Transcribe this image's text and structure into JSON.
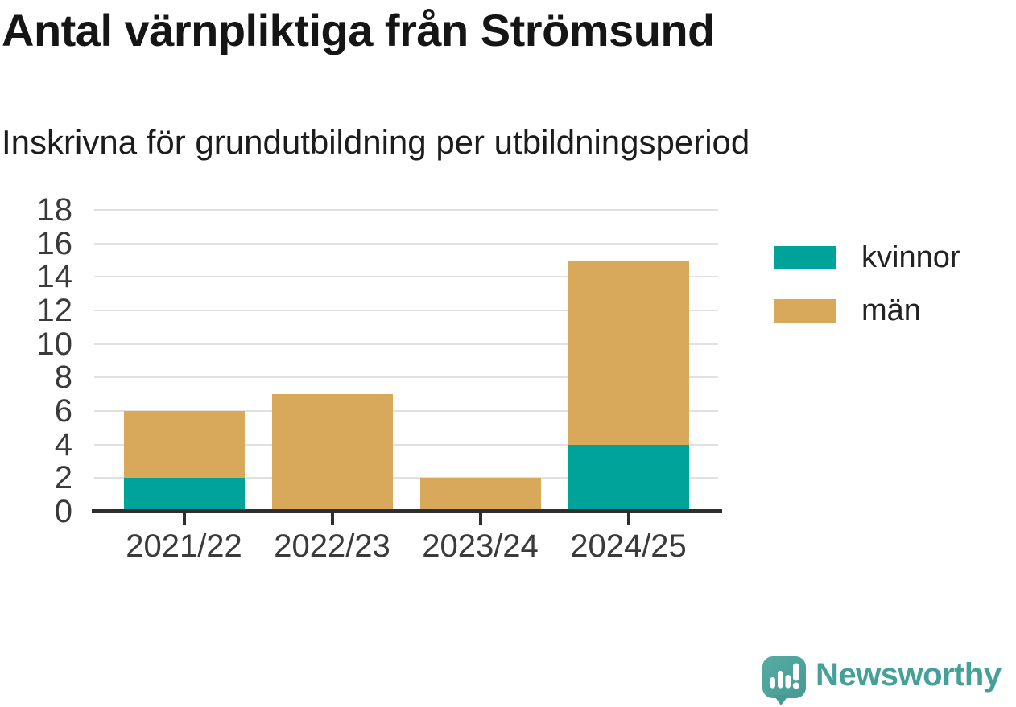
{
  "chart_data": {
    "type": "bar",
    "stacked": true,
    "title": "Antal värnpliktiga från Strömsund",
    "subtitle": "Inskrivna för grundutbildning per utbildningsperiod",
    "categories": [
      "2021/22",
      "2022/23",
      "2023/24",
      "2024/25"
    ],
    "series": [
      {
        "name": "kvinnor",
        "color": "#00A39A",
        "values": [
          2,
          0,
          0,
          4
        ]
      },
      {
        "name": "män",
        "color": "#D8A95B",
        "values": [
          4,
          7,
          2,
          11
        ]
      }
    ],
    "totals": [
      6,
      7,
      2,
      15
    ],
    "ylim": [
      0,
      18
    ],
    "ytick_step": 2,
    "grid": true,
    "legend_position": "right"
  },
  "footer": {
    "brand": "Newsworthy",
    "brand_color": "#46A09A",
    "logo_icon": "speech-bubble-bar-chart-exclamation"
  },
  "colors": {
    "background": "#FFFFFF",
    "gridline": "#E1E1E1",
    "axis": "#2E2E2E",
    "title_text": "#151515",
    "tick_label": "#3A3A3A"
  }
}
